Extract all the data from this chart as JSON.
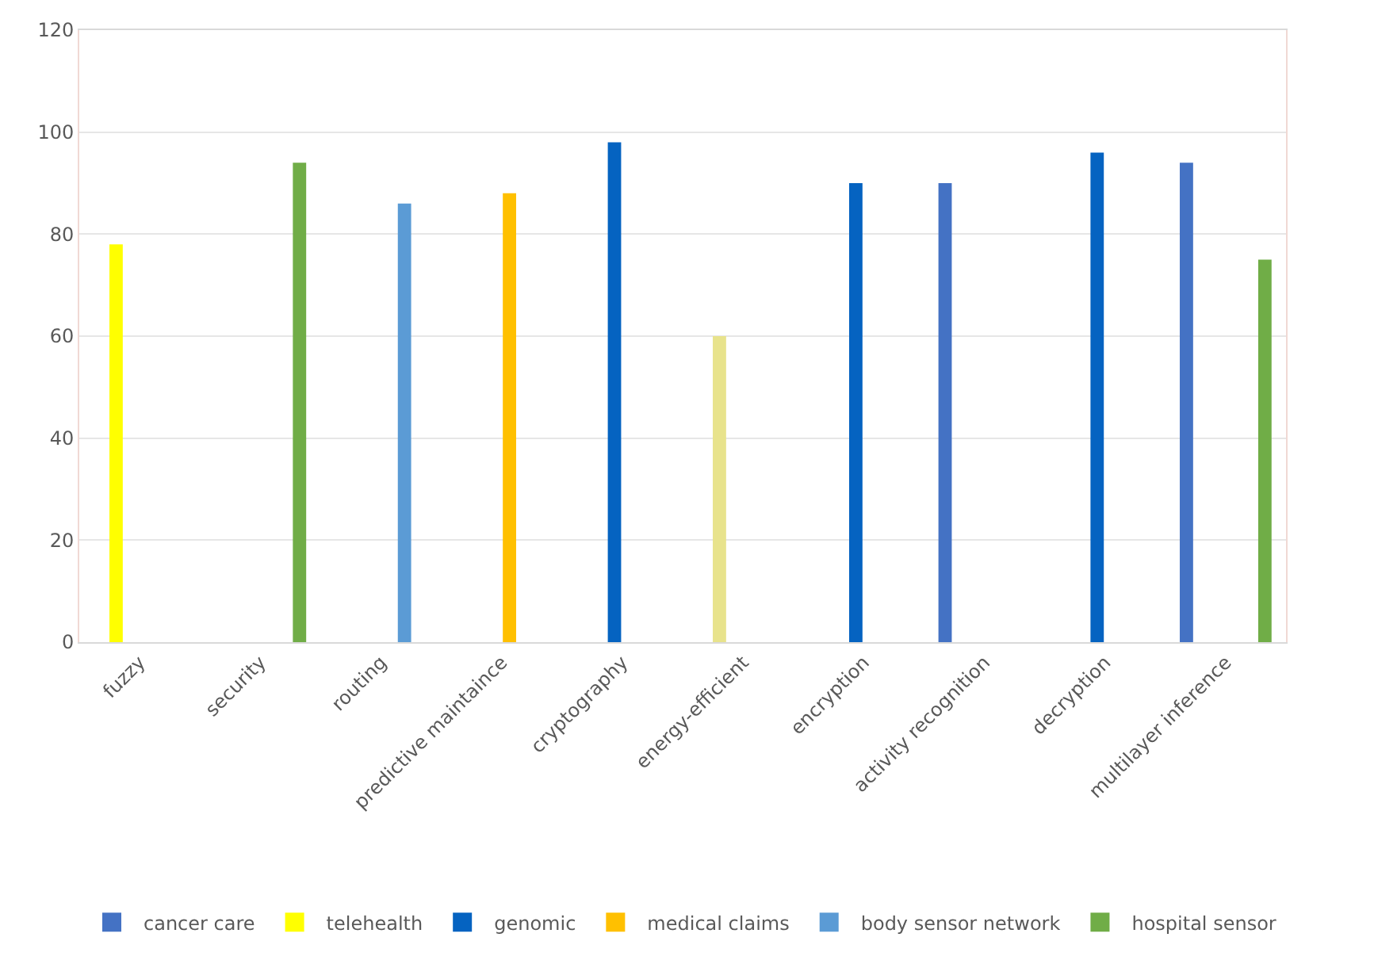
{
  "chart_data": {
    "type": "bar",
    "categories": [
      "fuzzy",
      "security",
      "routing",
      "predictive maintaince",
      "cryptography",
      "energy-efficient",
      "encryption",
      "activity recognition",
      "decryption",
      "multilayer inference"
    ],
    "series": [
      {
        "name": "cancer care",
        "color": "#4472c4",
        "values": [
          null,
          null,
          null,
          null,
          null,
          null,
          null,
          90,
          null,
          94
        ]
      },
      {
        "name": "telehealth",
        "color": "#ffff00",
        "colors": [
          "#ffff00",
          "#ffff00",
          "#ffff00",
          "#ffff00",
          "#ffff00",
          "#e8e38c",
          "#ffff00",
          "#ffff00",
          "#ffff00",
          "#ffff00"
        ],
        "values": [
          78,
          null,
          null,
          null,
          null,
          60,
          null,
          null,
          null,
          null
        ]
      },
      {
        "name": "genomic",
        "color": "#0563c1",
        "values": [
          null,
          null,
          null,
          null,
          98,
          null,
          90,
          null,
          96,
          null
        ]
      },
      {
        "name": "medical claims",
        "color": "#ffc000",
        "values": [
          null,
          null,
          null,
          88,
          null,
          null,
          null,
          null,
          null,
          null
        ]
      },
      {
        "name": "body sensor network",
        "color": "#5b9bd5",
        "values": [
          null,
          null,
          86,
          null,
          null,
          null,
          null,
          null,
          null,
          null
        ]
      },
      {
        "name": "hospital sensor",
        "color": "#70ad47",
        "values": [
          null,
          94,
          null,
          null,
          null,
          null,
          null,
          null,
          null,
          75
        ]
      }
    ],
    "ylim": [
      0,
      120
    ],
    "yticks": [
      0,
      20,
      40,
      60,
      80,
      100,
      120
    ],
    "grid": "y",
    "legend": "bottom"
  }
}
